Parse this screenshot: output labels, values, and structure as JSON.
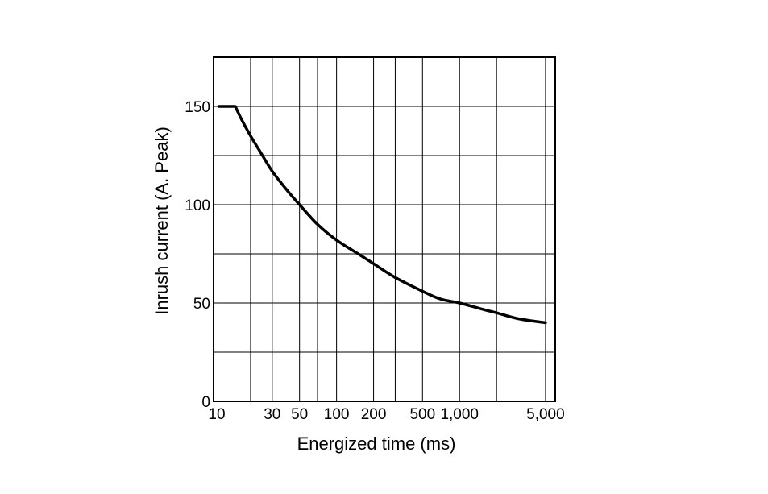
{
  "chart_data": {
    "type": "line",
    "title": "",
    "xlabel": "Energized time (ms)",
    "ylabel": "Inrush current (A. Peak)",
    "xscale": "log",
    "xlim": [
      10,
      6000
    ],
    "ylim": [
      0,
      175
    ],
    "grid": true,
    "x_ticks": [
      {
        "value": 10,
        "label": "10"
      },
      {
        "value": 30,
        "label": "30"
      },
      {
        "value": 50,
        "label": "50"
      },
      {
        "value": 100,
        "label": "100"
      },
      {
        "value": 200,
        "label": "200"
      },
      {
        "value": 500,
        "label": "500"
      },
      {
        "value": 1000,
        "label": "1,000"
      },
      {
        "value": 5000,
        "label": "5,000"
      }
    ],
    "x_gridlines": [
      20,
      30,
      50,
      70,
      100,
      200,
      300,
      500,
      1000,
      2000,
      5000
    ],
    "y_ticks": [
      {
        "value": 0,
        "label": "0"
      },
      {
        "value": 50,
        "label": "50"
      },
      {
        "value": 100,
        "label": "100"
      },
      {
        "value": 150,
        "label": "150"
      }
    ],
    "y_gridlines": [
      25,
      50,
      75,
      100,
      125,
      150
    ],
    "series": [
      {
        "name": "",
        "color": "#000000",
        "points": [
          [
            11,
            150
          ],
          [
            15,
            150
          ],
          [
            17,
            143
          ],
          [
            20,
            135
          ],
          [
            25,
            125
          ],
          [
            30,
            117
          ],
          [
            40,
            107
          ],
          [
            50,
            100
          ],
          [
            70,
            90
          ],
          [
            100,
            82
          ],
          [
            150,
            75
          ],
          [
            200,
            70
          ],
          [
            300,
            63
          ],
          [
            500,
            56
          ],
          [
            700,
            52
          ],
          [
            1000,
            50
          ],
          [
            1500,
            47
          ],
          [
            2000,
            45
          ],
          [
            3000,
            42
          ],
          [
            5000,
            40
          ]
        ]
      }
    ]
  }
}
